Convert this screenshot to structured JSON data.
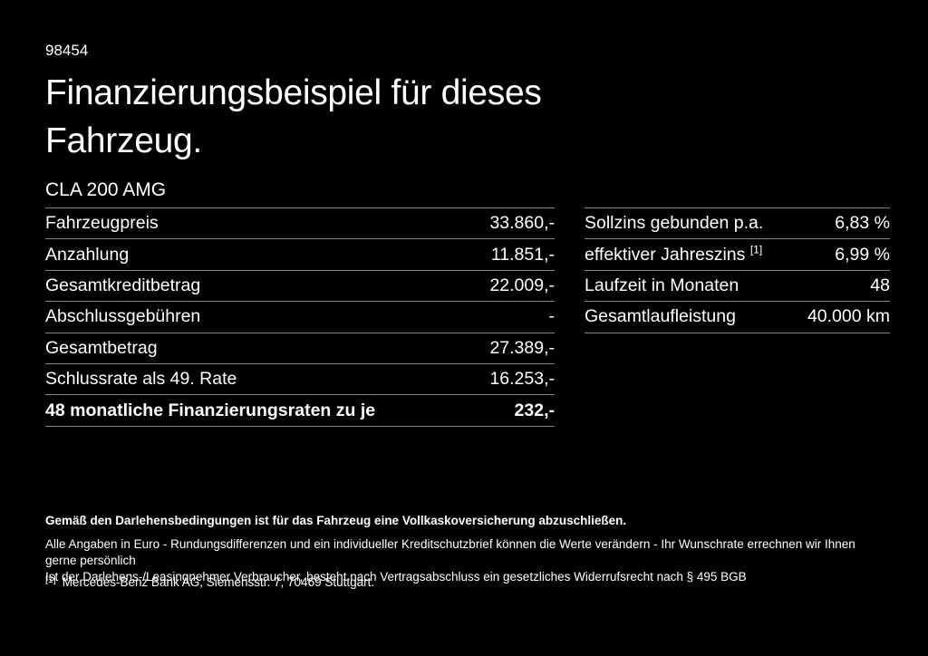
{
  "page": {
    "ref_number": "98454",
    "title": "Finanzierungsbeispiel für dieses Fahrzeug.",
    "model": "CLA 200 AMG"
  },
  "tables": {
    "left": {
      "rows": [
        {
          "label": "Fahrzeugpreis",
          "value": "33.860,-"
        },
        {
          "label": "Anzahlung",
          "value": "11.851,-"
        },
        {
          "label": "Gesamtkreditbetrag",
          "value": "22.009,-"
        },
        {
          "label": "Abschlussgebühren",
          "value": "-"
        },
        {
          "label": "Gesamtbetrag",
          "value": "27.389,-"
        },
        {
          "label": "Schlussrate als 49. Rate",
          "value": "16.253,-"
        },
        {
          "label": "48 monatliche Finanzierungsraten zu je",
          "value": "232,-"
        }
      ]
    },
    "right": {
      "rows": [
        {
          "label": "Sollzins gebunden p.a.",
          "value": "6,83 %"
        },
        {
          "label": "effektiver Jahreszins ",
          "sup": "[1]",
          "value": "6,99 %"
        },
        {
          "label": "Laufzeit in Monaten",
          "value": "48"
        },
        {
          "label": "Gesamtlaufleistung",
          "value": "40.000 km"
        }
      ]
    }
  },
  "footer": {
    "bold_note": "Gemäß den Darlehensbedingungen ist für das Fahrzeug eine Vollkaskoversicherung abzuschließen.",
    "note_line1": "Alle Angaben in Euro - Rundungsdifferenzen und ein individueller Kreditschutzbrief können die Werte verändern - Ihr Wunschrate errechnen wir Ihnen gerne persönlich",
    "note_line2": "Ist der Darlehens-/Leasingnehmer Verbraucher, besteht nach Vertragsabschluss ein gesetzliches Widerrufsrecht nach § 495 BGB",
    "footnote_marker": "[1]",
    "footnote_text": "Mercedes-Benz Bank AG, Siemensstr. 7, 70469 Stuttgart."
  },
  "colors": {
    "background": "#000000",
    "text": "#ffffff",
    "divider": "#878787"
  }
}
